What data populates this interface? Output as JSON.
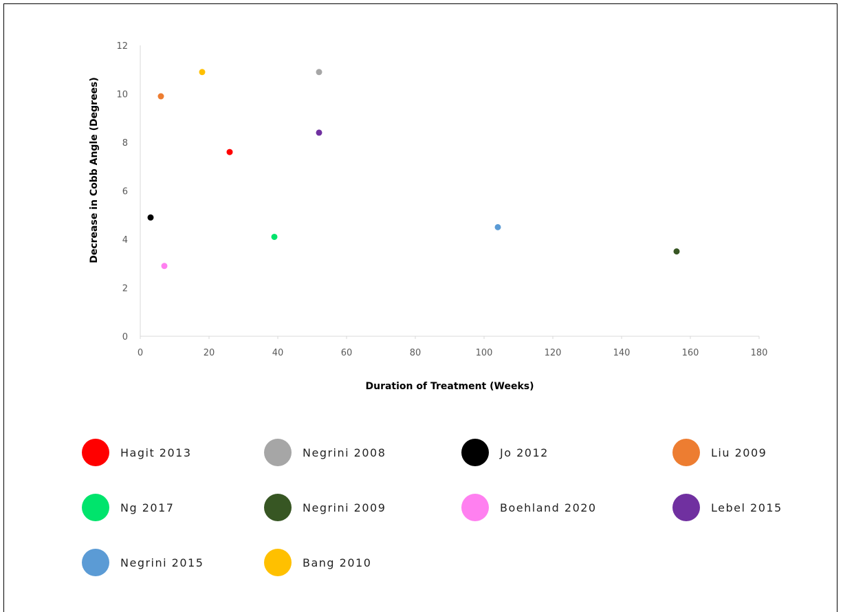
{
  "chart_data": {
    "type": "scatter",
    "title": "",
    "xlabel": "Duration of Treatment (Weeks)",
    "ylabel": "Decrease in Cobb Angle (Degrees)",
    "xlim": [
      0,
      180
    ],
    "ylim": [
      0,
      12
    ],
    "x_ticks": [
      0,
      20,
      40,
      60,
      80,
      100,
      120,
      140,
      160,
      180
    ],
    "y_ticks": [
      0,
      2,
      4,
      6,
      8,
      10,
      12
    ],
    "grid": false,
    "legend_position": "bottom",
    "series": [
      {
        "name": "Hagit 2013",
        "color": "#ff0000",
        "points": [
          {
            "x": 26,
            "y": 7.6
          }
        ]
      },
      {
        "name": "Negrini 2008",
        "color": "#a6a6a6",
        "points": [
          {
            "x": 52,
            "y": 10.9
          }
        ]
      },
      {
        "name": "Jo 2012",
        "color": "#000000",
        "points": [
          {
            "x": 3,
            "y": 4.9
          }
        ]
      },
      {
        "name": "Liu 2009",
        "color": "#ed7d31",
        "points": [
          {
            "x": 6,
            "y": 9.9
          }
        ]
      },
      {
        "name": "Ng 2017",
        "color": "#00e46c",
        "points": [
          {
            "x": 39,
            "y": 4.1
          }
        ]
      },
      {
        "name": "Negrini 2009",
        "color": "#375623",
        "points": [
          {
            "x": 156,
            "y": 3.5
          }
        ]
      },
      {
        "name": "Boehland 2020",
        "color": "#ff80f0",
        "points": [
          {
            "x": 7,
            "y": 2.9
          }
        ]
      },
      {
        "name": "Lebel 2015",
        "color": "#7030a0",
        "points": [
          {
            "x": 52,
            "y": 8.4
          }
        ]
      },
      {
        "name": "Negrini 2015",
        "color": "#5b9bd5",
        "points": [
          {
            "x": 104,
            "y": 4.5
          }
        ]
      },
      {
        "name": "Bang 2010",
        "color": "#ffc000",
        "points": [
          {
            "x": 18,
            "y": 10.9
          }
        ]
      }
    ]
  }
}
